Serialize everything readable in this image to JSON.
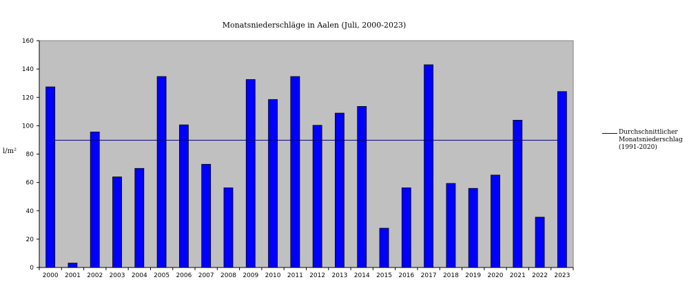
{
  "chart_data": {
    "type": "bar",
    "title": "Monatsniederschläge in Aalen (Juli, 2000-2023)",
    "xlabel": "",
    "ylabel": "l/m²",
    "ylim": [
      0,
      160
    ],
    "yticks": [
      "0",
      "20",
      "40",
      "60",
      "80",
      "100",
      "120",
      "140",
      "160"
    ],
    "categories": [
      "2000",
      "2001",
      "2002",
      "2003",
      "2004",
      "2005",
      "2006",
      "2007",
      "2008",
      "2009",
      "2010",
      "2011",
      "2012",
      "2013",
      "2014",
      "2015",
      "2016",
      "2017",
      "2018",
      "2019",
      "2020",
      "2021",
      "2022",
      "2023"
    ],
    "values": [
      127.4,
      3.1,
      95.6,
      63.9,
      69.9,
      134.7,
      100.6,
      72.8,
      56.2,
      132.6,
      118.5,
      134.7,
      100.3,
      108.9,
      113.6,
      27.7,
      56.2,
      143.0,
      59.3,
      55.8,
      65.2,
      103.9,
      35.5,
      124.1
    ],
    "reference_line": {
      "value": 89.8,
      "label": [
        "Durchschnittlicher",
        "Monatsniederschlag",
        "(1991-2020)"
      ]
    },
    "legend_position": "right",
    "grid": false,
    "colors": {
      "bar": "#0000ff",
      "bar_edge": "#000000",
      "plot_bg": "#c0c0c0",
      "line": "#000080"
    }
  }
}
